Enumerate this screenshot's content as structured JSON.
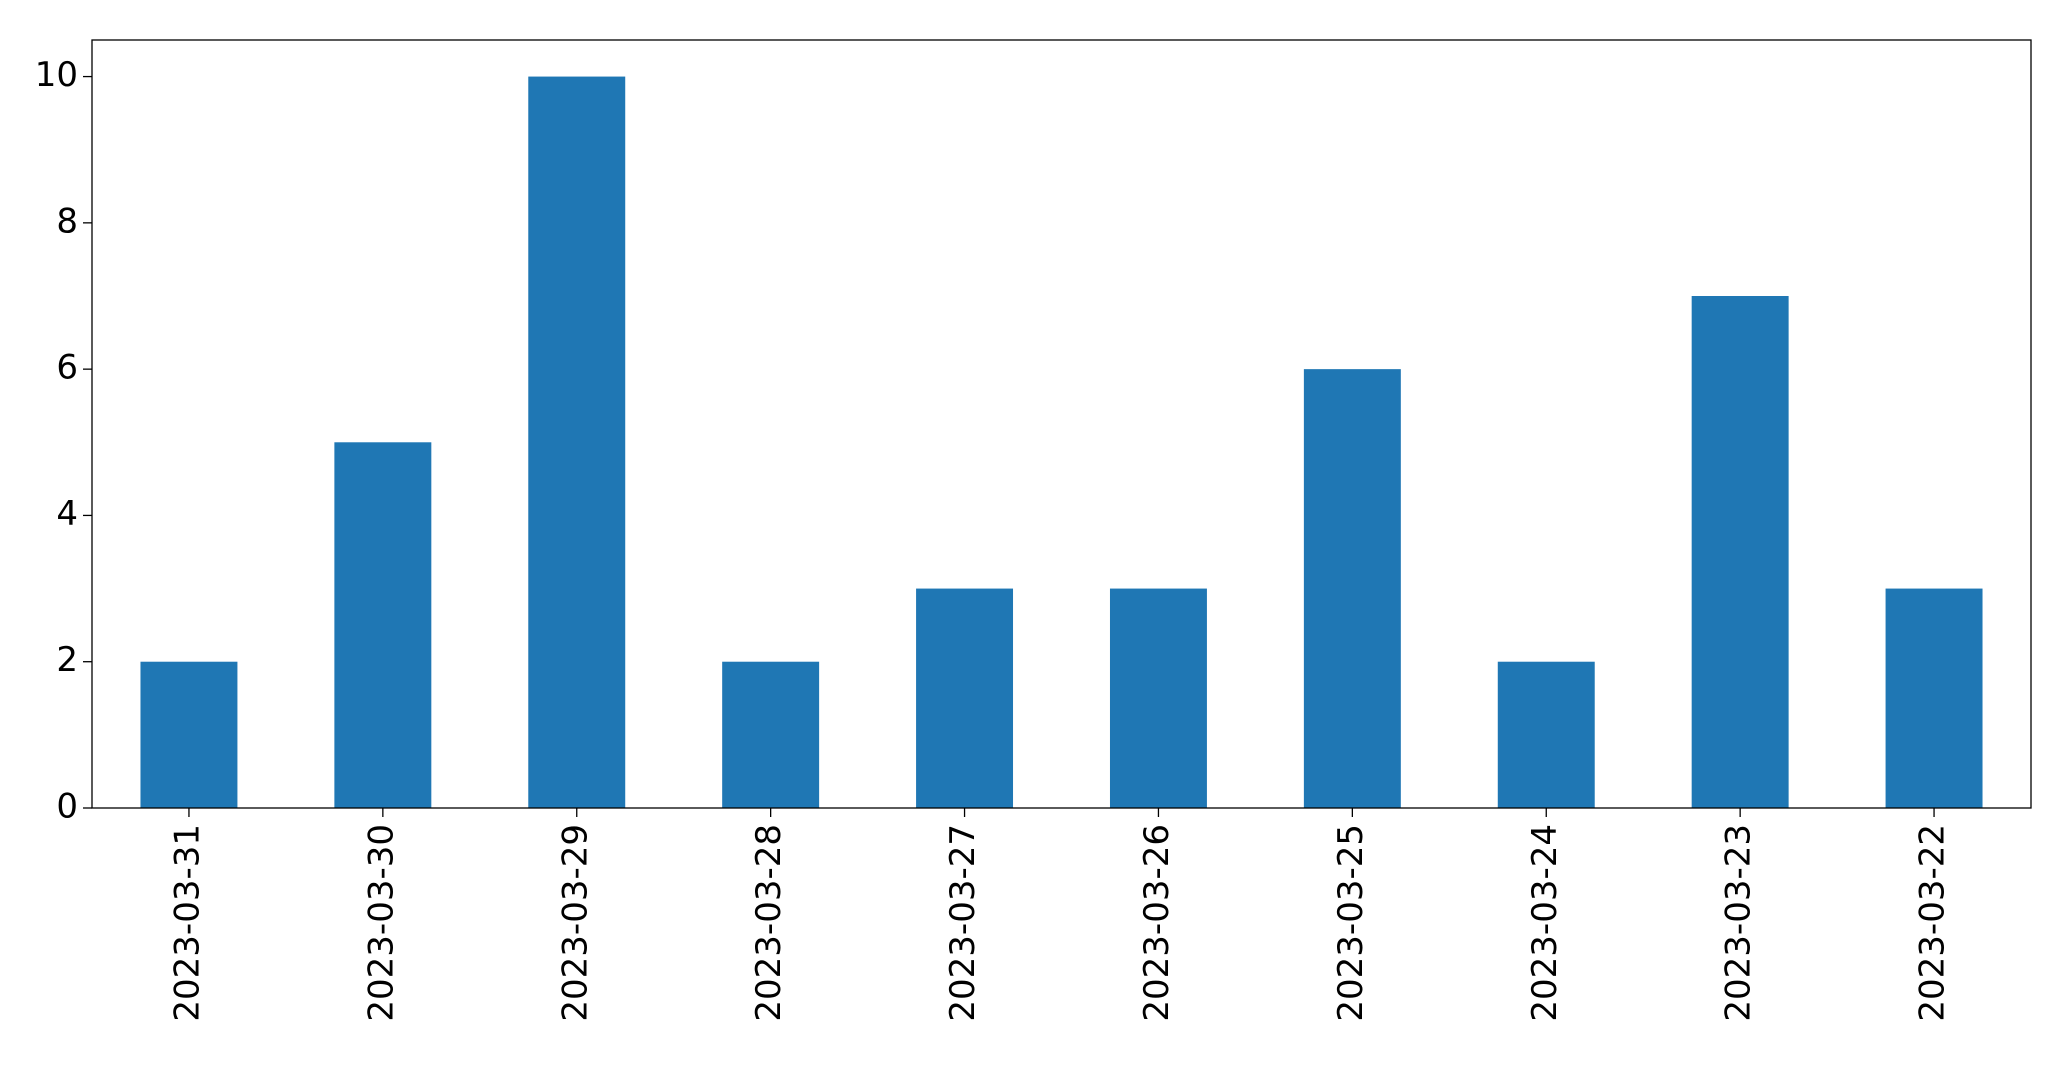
{
  "chart_data": {
    "type": "bar",
    "categories": [
      "2023-03-31",
      "2023-03-30",
      "2023-03-29",
      "2023-03-28",
      "2023-03-27",
      "2023-03-26",
      "2023-03-25",
      "2023-03-24",
      "2023-03-23",
      "2023-03-22"
    ],
    "values": [
      2,
      5,
      10,
      2,
      3,
      3,
      6,
      2,
      7,
      3
    ],
    "color": "#1f77b4",
    "ylim": [
      0,
      10.5
    ],
    "yticks": [
      0,
      2,
      4,
      6,
      8,
      10
    ],
    "grid": false
  }
}
